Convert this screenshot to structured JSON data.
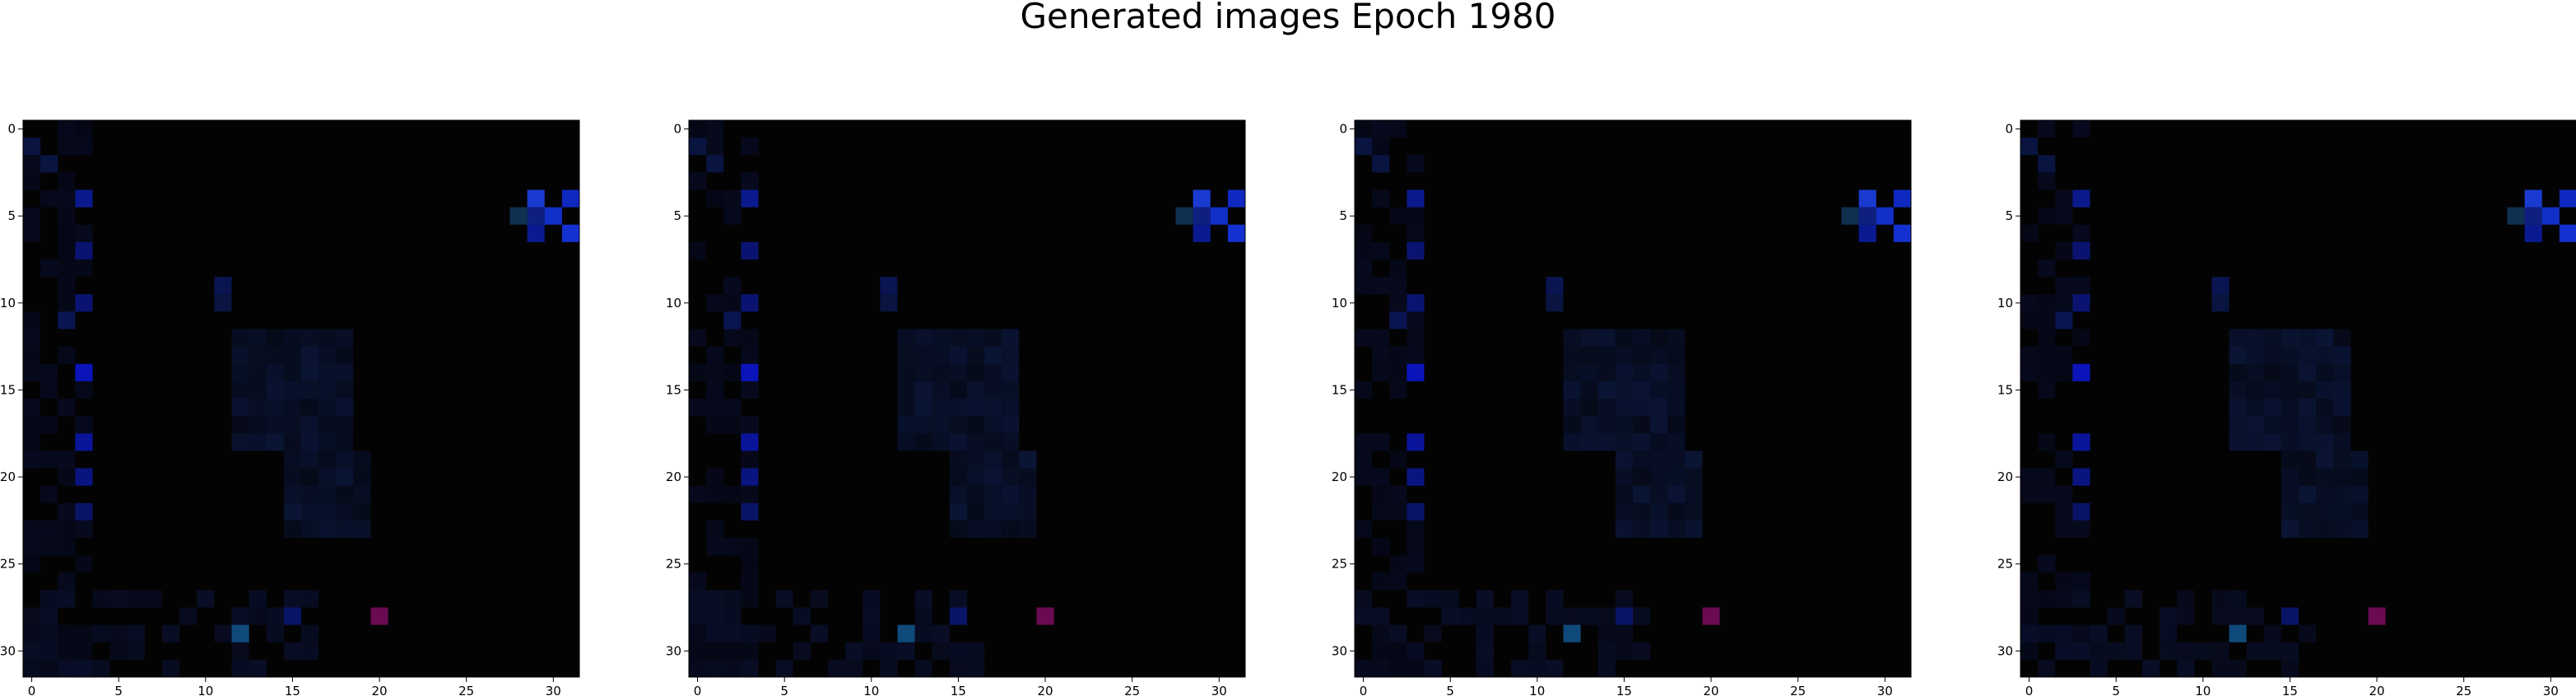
{
  "title": "Generated images Epoch 1980",
  "chart_data": {
    "type": "heatmap",
    "title": "Generated images Epoch 1980",
    "panel_count": 4,
    "grid_size": 32,
    "xlim": [
      -0.5,
      31.5
    ],
    "ylim": [
      31.5,
      -0.5
    ],
    "xticks": [
      0,
      5,
      10,
      15,
      20,
      25,
      30
    ],
    "yticks": [
      0,
      5,
      10,
      15,
      20,
      25,
      30
    ],
    "background_color": "#030303",
    "bright_cells": [
      {
        "col": 3,
        "row": 4,
        "color": "#0a1a8c"
      },
      {
        "col": 3,
        "row": 7,
        "color": "#0a1470"
      },
      {
        "col": 3,
        "row": 10,
        "color": "#0a1470"
      },
      {
        "col": 3,
        "row": 14,
        "color": "#0a14b8"
      },
      {
        "col": 3,
        "row": 18,
        "color": "#0a149a"
      },
      {
        "col": 3,
        "row": 20,
        "color": "#0a1480"
      },
      {
        "col": 3,
        "row": 22,
        "color": "#0a1466"
      },
      {
        "col": 2,
        "row": 11,
        "color": "#0a1450"
      },
      {
        "col": 1,
        "row": 2,
        "color": "#0a1440"
      },
      {
        "col": 0,
        "row": 1,
        "color": "#0a1440"
      },
      {
        "col": 29,
        "row": 4,
        "color": "#1a3ad0"
      },
      {
        "col": 31,
        "row": 4,
        "color": "#0f28c0"
      },
      {
        "col": 28,
        "row": 5,
        "color": "#0f3050"
      },
      {
        "col": 29,
        "row": 5,
        "color": "#0f1f80"
      },
      {
        "col": 30,
        "row": 5,
        "color": "#1030c8"
      },
      {
        "col": 29,
        "row": 6,
        "color": "#0a1a90"
      },
      {
        "col": 31,
        "row": 6,
        "color": "#1430d0"
      },
      {
        "col": 12,
        "row": 29,
        "color": "#0f4a7a"
      },
      {
        "col": 20,
        "row": 28,
        "color": "#6a0a50"
      },
      {
        "col": 15,
        "row": 28,
        "color": "#0a1466"
      },
      {
        "col": 11,
        "row": 9,
        "color": "#0a1450"
      },
      {
        "col": 11,
        "row": 10,
        "color": "#0a1440"
      }
    ],
    "blob_region": {
      "col_range": [
        12,
        19
      ],
      "row_range": [
        12,
        23
      ],
      "color": "#0a1434"
    },
    "left_column_band": {
      "col_range": [
        0,
        3
      ],
      "color": "#070a1e"
    },
    "bottom_band": {
      "row_range": [
        27,
        31
      ],
      "col_range": [
        0,
        16
      ],
      "color": "#0a0f2a"
    }
  }
}
